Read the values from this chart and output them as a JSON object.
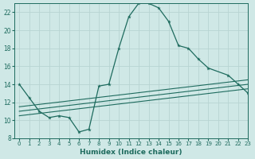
{
  "xlabel": "Humidex (Indice chaleur)",
  "xlim": [
    -0.5,
    23
  ],
  "ylim": [
    8,
    23
  ],
  "yticks": [
    8,
    10,
    12,
    14,
    16,
    18,
    20,
    22
  ],
  "xticks": [
    0,
    1,
    2,
    3,
    4,
    5,
    6,
    7,
    8,
    9,
    10,
    11,
    12,
    13,
    14,
    15,
    16,
    17,
    18,
    19,
    20,
    21,
    22,
    23
  ],
  "bg_color": "#cfe8e6",
  "grid_color": "#b8d4d2",
  "line_color": "#1e6b5e",
  "curves": [
    {
      "x": [
        0,
        1,
        2,
        3,
        4,
        5,
        6,
        7,
        8,
        9,
        10,
        11,
        12,
        13,
        14,
        15,
        16,
        17,
        18,
        19,
        21,
        22,
        23
      ],
      "y": [
        14.0,
        12.5,
        11.0,
        10.3,
        10.5,
        10.3,
        8.7,
        9.0,
        13.8,
        14.0,
        18.0,
        21.5,
        23.0,
        23.0,
        22.5,
        21.0,
        18.3,
        18.0,
        16.8,
        15.8,
        15.0,
        14.0,
        13.0
      ],
      "has_markers": true
    },
    {
      "x": [
        0,
        23
      ],
      "y": [
        10.5,
        13.5
      ],
      "has_markers": false
    },
    {
      "x": [
        0,
        23
      ],
      "y": [
        11.0,
        14.0
      ],
      "has_markers": false
    },
    {
      "x": [
        0,
        23
      ],
      "y": [
        11.5,
        14.5
      ],
      "has_markers": false
    }
  ]
}
